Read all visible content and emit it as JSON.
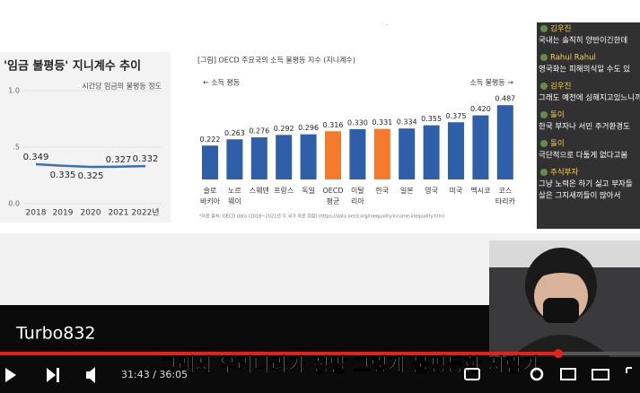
{
  "chart_data": [
    {
      "type": "line",
      "title": "'임금 불평등' 지니계수 추이",
      "subtitle": "시간당 임금의 불평등 정도",
      "categories": [
        "2018",
        "2019",
        "2020",
        "2021",
        "2022년"
      ],
      "values": [
        0.349,
        0.335,
        0.325,
        0.327,
        0.332
      ],
      "color": "#3b6fb6",
      "ylim": [
        0,
        1
      ],
      "yticks": [
        {
          "value": 0,
          "label": "0.0"
        },
        {
          "value": 0.5,
          "label": ".5"
        },
        {
          "value": 1,
          "label": "1.0"
        }
      ]
    },
    {
      "type": "bar",
      "title": "[그림] OECD 주요국의 소득 불평등 지수 (지니계수)",
      "annotations": [
        "← 소득 평등",
        "소득 불평등 →"
      ],
      "note": "*자료 출처: OECD data (2018~2021년 각 국가 자료 취합) (https://data.oecd.org/inequality/income-inequality.htm)",
      "categories": [
        "슬로\n바키아",
        "노르\n웨이",
        "스웨덴",
        "프랑스",
        "독일",
        "OECD\n평균",
        "이탈\n리아",
        "한국",
        "일본",
        "영국",
        "미국",
        "멕시코",
        "코스\n타리카"
      ],
      "values": [
        0.222,
        0.263,
        0.276,
        0.292,
        0.296,
        0.316,
        0.33,
        0.331,
        0.334,
        0.355,
        0.375,
        0.42,
        0.487
      ],
      "value_labels": [
        "0.222",
        "0.263",
        "0.276",
        "0.292",
        "0.296",
        "0.316",
        "0.330",
        "0.331",
        "0.334",
        "0.355",
        "0.375",
        "0.420",
        "0.487"
      ],
      "colors": [
        "#2e5fa8",
        "#2e5fa8",
        "#2e5fa8",
        "#2e5fa8",
        "#2e5fa8",
        "#f47b2b",
        "#2e5fa8",
        "#f47b2b",
        "#2e5fa8",
        "#2e5fa8",
        "#2e5fa8",
        "#2e5fa8",
        "#2e5fa8"
      ],
      "ylim": [
        0,
        1
      ]
    }
  ],
  "chat": [
    {
      "name": "김우진",
      "lines": [
        "국내는 솔직히 양반이긴한데"
      ]
    },
    {
      "name": "Rahul Rahul",
      "lines": [
        "영국화는 피해의식일 수도 있"
      ]
    },
    {
      "name": "김우진",
      "lines": [
        "그래도 예전에 심해지고있느니까"
      ]
    },
    {
      "name": "돌이",
      "lines": [
        "한국 부자나 서민 주거환경도"
      ]
    },
    {
      "name": "돌이",
      "lines": [
        "극단적으로 다툼게 없다고봄"
      ]
    },
    {
      "name": "주식부자",
      "lines": [
        "그냥 노력은 하기 싫고 부자들",
        "살은 그지새끼들이 많아서"
      ]
    }
  ],
  "player": {
    "channel": "Turbo832",
    "subtitle": "그래서 우리나라가 정말 그렇게 불평등한 사람가",
    "time": "31:43 / 36:05"
  }
}
